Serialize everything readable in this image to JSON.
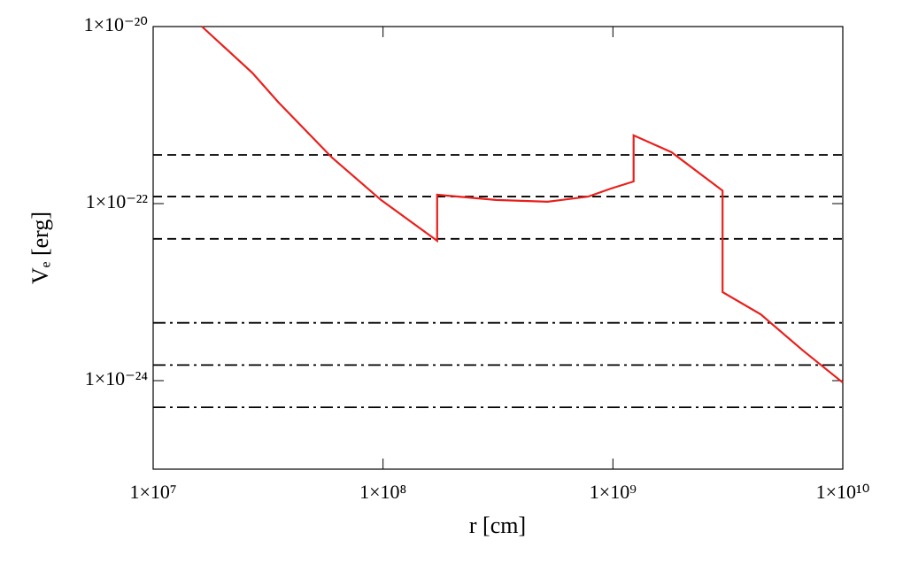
{
  "chart_data": {
    "type": "line",
    "xlabel": "r [cm]",
    "ylabel": "Vₑ [erg]",
    "xscale": "log",
    "yscale": "log",
    "xlim": [
      10000000.0,
      10000000000.0
    ],
    "ylim": [
      1e-25,
      1e-20
    ],
    "xticks": [
      {
        "value": 10000000.0,
        "label": "1×10⁷"
      },
      {
        "value": 100000000.0,
        "label": "1×10⁸"
      },
      {
        "value": 1000000000.0,
        "label": "1×10⁹"
      },
      {
        "value": 10000000000.0,
        "label": "1×10¹⁰"
      }
    ],
    "yticks": [
      {
        "value": 1e-24,
        "label": "1×10⁻²⁴"
      },
      {
        "value": 1e-22,
        "label": "1×10⁻²²"
      },
      {
        "value": 1e-20,
        "label": "1×10⁻²⁰"
      }
    ],
    "color": "#e8201c",
    "x": [
      16300000.0,
      27000000.0,
      35000000.0,
      60000000.0,
      98000000.0,
      172000000.0,
      172000000.0,
      310000000.0,
      520000000.0,
      780000000.0,
      980000000.0,
      1230000000.0,
      1230000000.0,
      1800000000.0,
      3000000000.0,
      3000000000.0,
      4400000000.0,
      6700000000.0,
      10000000000.0
    ],
    "values": [
      1e-20,
      3e-21,
      1.4e-21,
      3.3e-22,
      1.1e-22,
      3.8e-23,
      1.26e-22,
      1.1e-22,
      1.05e-22,
      1.2e-22,
      1.48e-22,
      1.78e-22,
      5.9e-22,
      3.8e-22,
      1.4e-22,
      1e-23,
      5.6e-24,
      2.2e-24,
      9.5e-25
    ],
    "hlines": [
      {
        "value": 3.55e-22,
        "style": "dashed"
      },
      {
        "value": 1.2e-22,
        "style": "dashed"
      },
      {
        "value": 4e-23,
        "style": "dashed"
      },
      {
        "value": 4.5e-24,
        "style": "dashdot"
      },
      {
        "value": 1.5e-24,
        "style": "dashdot"
      },
      {
        "value": 5e-25,
        "style": "dashdot"
      }
    ]
  }
}
